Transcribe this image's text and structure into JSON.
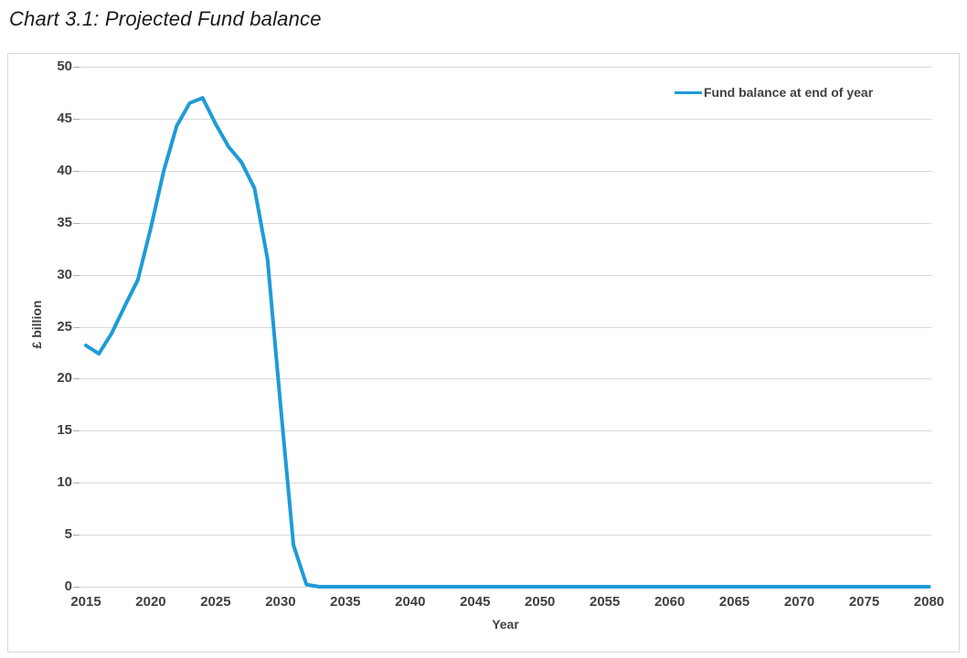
{
  "page": {
    "title": "Chart 3.1: Projected Fund balance"
  },
  "chart_data": {
    "type": "line",
    "title": "Chart 3.1: Projected Fund balance",
    "xlabel": "Year",
    "ylabel": "£ billion",
    "xlim": [
      2015,
      2080
    ],
    "ylim": [
      0,
      50
    ],
    "x_ticks": [
      2015,
      2020,
      2025,
      2030,
      2035,
      2040,
      2045,
      2050,
      2055,
      2060,
      2065,
      2070,
      2075,
      2080
    ],
    "y_ticks": [
      0,
      5,
      10,
      15,
      20,
      25,
      30,
      35,
      40,
      45,
      50
    ],
    "grid": "horizontal-only",
    "legend_position": "top-right-inside",
    "series": [
      {
        "name": "Fund balance at end of year",
        "color": "#1e9bd7",
        "x": [
          2015,
          2016,
          2017,
          2018,
          2019,
          2020,
          2021,
          2022,
          2023,
          2024,
          2025,
          2026,
          2027,
          2028,
          2029,
          2030,
          2031,
          2032,
          2033,
          2034,
          2035,
          2036,
          2037,
          2038,
          2039,
          2040,
          2041,
          2042,
          2043,
          2044,
          2045,
          2046,
          2047,
          2048,
          2049,
          2050,
          2051,
          2052,
          2053,
          2054,
          2055,
          2056,
          2057,
          2058,
          2059,
          2060,
          2061,
          2062,
          2063,
          2064,
          2065,
          2066,
          2067,
          2068,
          2069,
          2070,
          2071,
          2072,
          2073,
          2074,
          2075,
          2076,
          2077,
          2078,
          2079,
          2080
        ],
        "values": [
          23.2,
          22.4,
          24.4,
          27.0,
          29.5,
          34.5,
          40.0,
          44.3,
          46.5,
          47.0,
          44.5,
          42.3,
          40.8,
          38.3,
          31.5,
          17.5,
          4.0,
          0.2,
          0,
          0,
          0,
          0,
          0,
          0,
          0,
          0,
          0,
          0,
          0,
          0,
          0,
          0,
          0,
          0,
          0,
          0,
          0,
          0,
          0,
          0,
          0,
          0,
          0,
          0,
          0,
          0,
          0,
          0,
          0,
          0,
          0,
          0,
          0,
          0,
          0,
          0,
          0,
          0,
          0,
          0,
          0,
          0,
          0,
          0,
          0,
          0
        ]
      }
    ]
  },
  "colors": {
    "line": "#1e9bd7",
    "gridline": "#dadada",
    "tick_mark": "#ababab",
    "axis_text": "#404040",
    "title_text": "#1a1a1a",
    "panel_border": "#d7d7d7",
    "background": "#ffffff"
  }
}
